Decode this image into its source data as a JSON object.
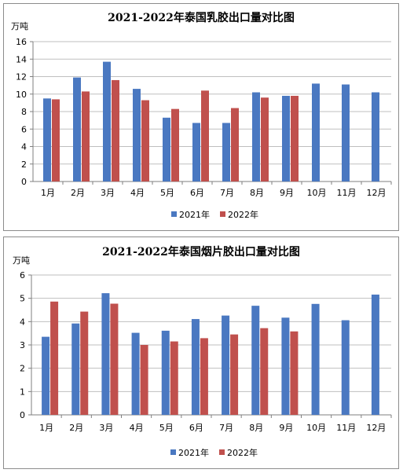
{
  "colors": {
    "series_2021": "#4a78c1",
    "series_2022": "#c0504d",
    "grid": "#bfbfbf",
    "axis": "#7f7f7f"
  },
  "chart_data": [
    {
      "type": "bar",
      "title": "2021-2022年泰国乳胶出口量对比图",
      "ylabel": "万吨",
      "ylim": [
        0,
        16
      ],
      "yticks": [
        0,
        2,
        4,
        6,
        8,
        10,
        12,
        14,
        16
      ],
      "categories": [
        "1月",
        "2月",
        "3月",
        "4月",
        "5月",
        "6月",
        "7月",
        "8月",
        "9月",
        "10月",
        "11月",
        "12月"
      ],
      "series": [
        {
          "name": "2021年",
          "values": [
            9.5,
            11.9,
            13.7,
            10.6,
            7.3,
            6.7,
            6.7,
            10.2,
            9.8,
            11.2,
            11.1,
            10.2
          ]
        },
        {
          "name": "2022年",
          "values": [
            9.4,
            10.3,
            11.6,
            9.3,
            8.3,
            10.4,
            8.4,
            9.6,
            9.8,
            null,
            null,
            null
          ]
        }
      ],
      "grid": true,
      "legend": "bottom"
    },
    {
      "type": "bar",
      "title": "2021-2022年泰国烟片胶出口量对比图",
      "ylabel": "万吨",
      "ylim": [
        0,
        6
      ],
      "yticks": [
        0,
        1,
        2,
        3,
        4,
        5,
        6
      ],
      "categories": [
        "1月",
        "2月",
        "3月",
        "4月",
        "5月",
        "6月",
        "7月",
        "8月",
        "9月",
        "10月",
        "11月",
        "12月"
      ],
      "series": [
        {
          "name": "2021年",
          "values": [
            3.35,
            3.92,
            5.22,
            3.52,
            3.61,
            4.11,
            4.26,
            4.68,
            4.17,
            4.76,
            4.06,
            5.16
          ]
        },
        {
          "name": "2022年",
          "values": [
            4.86,
            4.43,
            4.77,
            3.0,
            3.15,
            3.29,
            3.45,
            3.72,
            3.58,
            null,
            null,
            null
          ]
        }
      ],
      "grid": true,
      "legend": "bottom"
    }
  ]
}
